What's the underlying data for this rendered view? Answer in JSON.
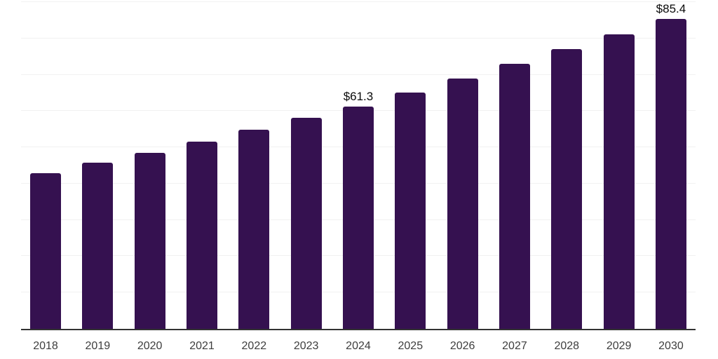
{
  "chart_data": {
    "type": "bar",
    "title": "",
    "xlabel": "",
    "ylabel": "",
    "categories": [
      "2018",
      "2019",
      "2020",
      "2021",
      "2022",
      "2023",
      "2024",
      "2025",
      "2026",
      "2027",
      "2028",
      "2029",
      "2030"
    ],
    "values": [
      42.8,
      45.8,
      48.5,
      51.6,
      54.9,
      58.1,
      61.3,
      65.1,
      69.0,
      73.0,
      77.1,
      81.2,
      85.4
    ],
    "value_labels": [
      "",
      "",
      "",
      "",
      "",
      "",
      "$61.3",
      "",
      "",
      "",
      "",
      "",
      "$85.4"
    ],
    "ylim": [
      0,
      90
    ],
    "gridline_interval": 10,
    "grid": "horizontal",
    "y_tick_labels_shown": false,
    "legend_position": "none",
    "colors": {
      "bar": "#351150",
      "axis_line": "#333333",
      "gridline": "#f1f1f1",
      "tick_label": "#3d3d3d",
      "value_label": "#0a0a0a",
      "background": "#ffffff"
    }
  }
}
